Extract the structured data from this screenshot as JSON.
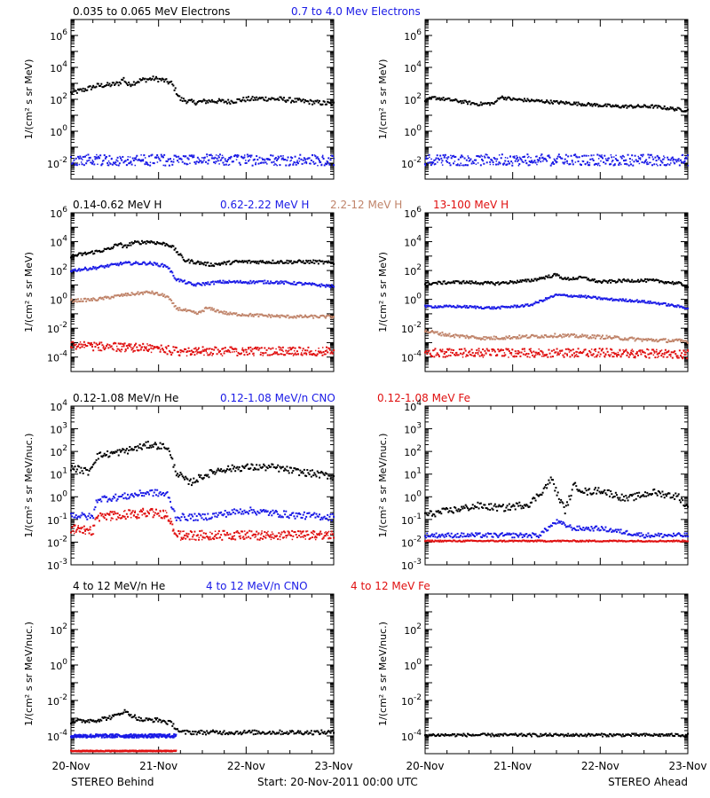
{
  "colors": {
    "black": "#000000",
    "blue": "#1a1ae6",
    "tan": "#c0846a",
    "red": "#e01010"
  },
  "footer": {
    "left": "STEREO Behind",
    "center": "Start: 20-Nov-2011 00:00 UTC",
    "right": "STEREO Ahead"
  },
  "x_axis": {
    "ticks": [
      "20-Nov",
      "21-Nov",
      "22-Nov",
      "23-Nov"
    ],
    "range": [
      "2011-11-20 00:00",
      "2011-11-23 00:00"
    ]
  },
  "chart_data": [
    {
      "type": "scatter",
      "row": "electrons",
      "legend": [
        {
          "label": "0.035 to 0.065 MeV Electrons",
          "color": "#000000"
        },
        {
          "label": "0.7 to 4.0 Mev Electrons",
          "color": "#1a1ae6"
        }
      ],
      "ylabel": "1/(cm² s sr MeV)",
      "y_scale": "log",
      "y_ticks": [
        {
          "exp": 6,
          "label": "10",
          "sup": "6"
        },
        {
          "exp": 4,
          "label": "10",
          "sup": "4"
        },
        {
          "exp": 2,
          "label": "10",
          "sup": "2"
        },
        {
          "exp": 0,
          "label": "10",
          "sup": "0"
        },
        {
          "exp": -2,
          "label": "10",
          "sup": "-2"
        }
      ],
      "ylim_exp": [
        -3,
        7
      ],
      "panels": {
        "behind": {
          "series": [
            {
              "label": "0.035 to 0.065 MeV Electrons",
              "color": "#000000",
              "x_days": [
                0,
                0.15,
                0.3,
                0.45,
                0.55,
                0.6,
                0.65,
                0.8,
                0.95,
                1.05,
                1.15,
                1.25,
                1.4,
                1.6,
                1.8,
                2.0,
                2.2,
                2.4,
                2.6,
                2.8,
                3.0
              ],
              "log_y": [
                2.4,
                2.6,
                2.85,
                2.9,
                3.0,
                3.3,
                2.9,
                3.2,
                3.3,
                3.2,
                3.0,
                2.0,
                1.8,
                1.9,
                1.85,
                2.0,
                2.05,
                2.0,
                1.9,
                1.8,
                1.7
              ],
              "noise": 0.15
            },
            {
              "label": "0.7 to 4.0 Mev Electrons",
              "color": "#1a1ae6",
              "x_days": [
                0,
                3.0
              ],
              "log_y": [
                -1.8,
                -1.8
              ],
              "noise": 0.35
            }
          ]
        },
        "ahead": {
          "series": [
            {
              "label": "0.035 to 0.065 MeV Electrons",
              "color": "#000000",
              "x_days": [
                0,
                0.1,
                0.3,
                0.6,
                0.8,
                0.85,
                1.0,
                1.4,
                1.8,
                2.2,
                2.6,
                3.0
              ],
              "log_y": [
                1.9,
                2.1,
                1.95,
                1.7,
                1.75,
                2.15,
                2.0,
                1.85,
                1.7,
                1.55,
                1.55,
                1.3
              ],
              "noise": 0.1
            },
            {
              "label": "0.7 to 4.0 Mev Electrons",
              "color": "#1a1ae6",
              "x_days": [
                0,
                3.0
              ],
              "log_y": [
                -1.8,
                -1.8
              ],
              "noise": 0.35
            }
          ]
        }
      }
    },
    {
      "type": "scatter",
      "row": "protons",
      "legend": [
        {
          "label": "0.14-0.62 MeV H",
          "color": "#000000"
        },
        {
          "label": "0.62-2.22 MeV H",
          "color": "#1a1ae6"
        },
        {
          "label": "2.2-12 MeV H",
          "color": "#c0846a"
        },
        {
          "label": "13-100 MeV H",
          "color": "#e01010"
        }
      ],
      "ylabel": "1/(cm² s sr MeV)",
      "y_scale": "log",
      "y_ticks": [
        {
          "exp": 6,
          "label": "10",
          "sup": "6"
        },
        {
          "exp": 4,
          "label": "10",
          "sup": "4"
        },
        {
          "exp": 2,
          "label": "10",
          "sup": "2"
        },
        {
          "exp": 0,
          "label": "10",
          "sup": "0"
        },
        {
          "exp": -2,
          "label": "10",
          "sup": "-2"
        },
        {
          "exp": -4,
          "label": "10",
          "sup": "-4"
        }
      ],
      "ylim_exp": [
        -5,
        6
      ],
      "panels": {
        "behind": {
          "series": [
            {
              "label": "0.14-0.62 MeV H",
              "color": "#000000",
              "x_days": [
                0,
                0.2,
                0.45,
                0.55,
                0.6,
                0.7,
                0.9,
                1.1,
                1.15,
                1.3,
                1.6,
                1.9,
                2.2,
                2.5,
                2.8,
                3.0
              ],
              "log_y": [
                3.0,
                3.2,
                3.5,
                3.9,
                3.6,
                3.9,
                4.0,
                3.8,
                3.7,
                2.7,
                2.4,
                2.6,
                2.6,
                2.6,
                2.6,
                2.5
              ],
              "noise": 0.12
            },
            {
              "label": "0.62-2.22 MeV H",
              "color": "#1a1ae6",
              "x_days": [
                0,
                0.3,
                0.6,
                0.9,
                1.1,
                1.2,
                1.4,
                1.7,
                2.0,
                2.3,
                2.6,
                3.0
              ],
              "log_y": [
                2.0,
                2.2,
                2.5,
                2.5,
                2.3,
                1.4,
                1.0,
                1.2,
                1.2,
                1.2,
                1.1,
                0.9
              ],
              "noise": 0.1
            },
            {
              "label": "2.2-12 MeV H",
              "color": "#c0846a",
              "x_days": [
                0,
                0.3,
                0.6,
                0.9,
                1.1,
                1.2,
                1.45,
                1.55,
                1.8,
                2.1,
                2.5,
                3.0
              ],
              "log_y": [
                -0.1,
                0.0,
                0.3,
                0.5,
                0.2,
                -0.6,
                -1.0,
                -0.6,
                -1.0,
                -1.1,
                -1.2,
                -1.2
              ],
              "noise": 0.1
            },
            {
              "label": "13-100 MeV H",
              "color": "#e01010",
              "x_days": [
                0,
                0.5,
                1.0,
                1.2,
                2.0,
                3.0
              ],
              "log_y": [
                -3.2,
                -3.3,
                -3.4,
                -3.6,
                -3.6,
                -3.6
              ],
              "noise": 0.3
            }
          ]
        },
        "ahead": {
          "series": [
            {
              "label": "0.14-0.62 MeV H",
              "color": "#000000",
              "x_days": [
                0,
                0.4,
                0.8,
                1.2,
                1.5,
                1.6,
                1.8,
                2.0,
                2.3,
                2.6,
                2.9,
                3.0
              ],
              "log_y": [
                1.1,
                1.2,
                1.1,
                1.3,
                1.7,
                1.4,
                1.5,
                1.2,
                1.3,
                1.3,
                1.1,
                0.9
              ],
              "noise": 0.1
            },
            {
              "label": "0.62-2.22 MeV H",
              "color": "#1a1ae6",
              "x_days": [
                0,
                0.4,
                0.8,
                1.2,
                1.5,
                1.8,
                2.1,
                2.4,
                2.7,
                3.0
              ],
              "log_y": [
                -0.5,
                -0.5,
                -0.6,
                -0.4,
                0.3,
                0.2,
                0.0,
                -0.1,
                -0.3,
                -0.6
              ],
              "noise": 0.08
            },
            {
              "label": "2.2-12 MeV H",
              "color": "#c0846a",
              "x_days": [
                0,
                0.3,
                0.7,
                1.1,
                1.5,
                2.0,
                2.5,
                3.0
              ],
              "log_y": [
                -2.2,
                -2.5,
                -2.7,
                -2.6,
                -2.5,
                -2.6,
                -2.8,
                -2.9
              ],
              "noise": 0.12
            },
            {
              "label": "13-100 MeV H",
              "color": "#e01010",
              "x_days": [
                0,
                1.0,
                2.0,
                3.0
              ],
              "log_y": [
                -3.7,
                -3.7,
                -3.7,
                -3.8
              ],
              "noise": 0.3
            }
          ]
        }
      }
    },
    {
      "type": "scatter",
      "row": "low-energy ions",
      "legend": [
        {
          "label": "0.12-1.08 MeV/n He",
          "color": "#000000"
        },
        {
          "label": "0.12-1.08 MeV/n CNO",
          "color": "#1a1ae6"
        },
        {
          "label": "0.12-1.08 MeV Fe",
          "color": "#e01010"
        }
      ],
      "ylabel": "1/(cm² s sr MeV/nuc.)",
      "y_scale": "log",
      "y_ticks": [
        {
          "exp": 4,
          "label": "10",
          "sup": "4"
        },
        {
          "exp": 3,
          "label": "10",
          "sup": "3"
        },
        {
          "exp": 2,
          "label": "10",
          "sup": "2"
        },
        {
          "exp": 1,
          "label": "10",
          "sup": "1"
        },
        {
          "exp": 0,
          "label": "10",
          "sup": "0"
        },
        {
          "exp": -1,
          "label": "10",
          "sup": "-1"
        },
        {
          "exp": -2,
          "label": "10",
          "sup": "-2"
        },
        {
          "exp": -3,
          "label": "10",
          "sup": "-3"
        }
      ],
      "ylim_exp": [
        -3,
        4
      ],
      "panels": {
        "behind": {
          "series": [
            {
              "label": "0.12-1.08 MeV/n He",
              "color": "#000000",
              "x_days": [
                0,
                0.2,
                0.3,
                0.6,
                0.9,
                1.1,
                1.2,
                1.35,
                1.5,
                1.7,
                2.0,
                2.3,
                2.6,
                3.0
              ],
              "log_y": [
                1.3,
                1.1,
                1.8,
                2.0,
                2.3,
                2.2,
                1.1,
                0.6,
                0.9,
                1.2,
                1.3,
                1.3,
                1.1,
                0.9
              ],
              "noise": 0.15
            },
            {
              "label": "0.12-1.08 MeV/n CNO",
              "color": "#1a1ae6",
              "x_days": [
                0,
                0.25,
                0.3,
                0.6,
                0.9,
                1.1,
                1.2,
                1.5,
                2.0,
                2.5,
                3.0
              ],
              "log_y": [
                -0.8,
                -0.9,
                -0.1,
                0.0,
                0.2,
                0.1,
                -0.9,
                -0.9,
                -0.6,
                -0.8,
                -0.9
              ],
              "noise": 0.15
            },
            {
              "label": "0.12-1.08 MeV Fe",
              "color": "#e01010",
              "x_days": [
                0,
                0.25,
                0.3,
                0.6,
                0.9,
                1.1,
                1.2,
                3.0
              ],
              "log_y": [
                -1.4,
                -1.5,
                -0.9,
                -0.8,
                -0.7,
                -0.8,
                -1.7,
                -1.7
              ],
              "noise": 0.2
            }
          ]
        },
        "ahead": {
          "series": [
            {
              "label": "0.12-1.08 MeV/n He",
              "color": "#000000",
              "x_days": [
                0,
                0.3,
                0.6,
                0.9,
                1.2,
                1.35,
                1.45,
                1.5,
                1.6,
                1.7,
                1.85,
                2.0,
                2.3,
                2.6,
                2.9,
                3.0
              ],
              "log_y": [
                -0.8,
                -0.6,
                -0.4,
                -0.5,
                -0.3,
                0.3,
                0.8,
                0.2,
                -0.6,
                0.5,
                0.2,
                0.3,
                -0.1,
                0.2,
                0.0,
                -0.5
              ],
              "noise": 0.15
            },
            {
              "label": "0.12-1.08 MeV/n CNO",
              "color": "#1a1ae6",
              "x_days": [
                0,
                1.3,
                1.5,
                1.7,
                2.0,
                2.5,
                3.0
              ],
              "log_y": [
                -1.7,
                -1.7,
                -1.1,
                -1.4,
                -1.4,
                -1.7,
                -1.7
              ],
              "noise": 0.1
            },
            {
              "label": "0.12-1.08 MeV Fe",
              "color": "#e01010",
              "x_days": [
                0,
                3.0
              ],
              "log_y": [
                -1.95,
                -1.95
              ],
              "noise": 0.03
            }
          ]
        }
      }
    },
    {
      "type": "scatter",
      "row": "high-energy ions",
      "legend": [
        {
          "label": "4 to 12 MeV/n He",
          "color": "#000000"
        },
        {
          "label": "4 to 12 MeV/n CNO",
          "color": "#1a1ae6"
        },
        {
          "label": "4 to 12 MeV Fe",
          "color": "#e01010"
        }
      ],
      "ylabel": "1/(cm² s sr MeV/nuc.)",
      "y_scale": "log",
      "y_ticks": [
        {
          "exp": 2,
          "label": "10",
          "sup": "2"
        },
        {
          "exp": 0,
          "label": "10",
          "sup": "0"
        },
        {
          "exp": -2,
          "label": "10",
          "sup": "-2"
        },
        {
          "exp": -4,
          "label": "10",
          "sup": "-4"
        }
      ],
      "ylim_exp": [
        -5,
        4
      ],
      "panels": {
        "behind": {
          "series": [
            {
              "label": "4 to 12 MeV/n He",
              "color": "#000000",
              "x_days": [
                0,
                0.3,
                0.5,
                0.6,
                0.8,
                1.0,
                1.15,
                1.25,
                3.0
              ],
              "log_y": [
                -3.2,
                -3.1,
                -2.9,
                -2.6,
                -3.1,
                -3.1,
                -3.3,
                -3.8,
                -3.8
              ],
              "noise": 0.12
            },
            {
              "label": "4 to 12 MeV/n CNO",
              "color": "#1a1ae6",
              "x_days": [
                0,
                1.2
              ],
              "log_y": [
                -4.0,
                -4.0
              ],
              "noise": 0.1
            },
            {
              "label": "4 to 12 MeV Fe",
              "color": "#e01010",
              "x_days": [
                0,
                1.2
              ],
              "log_y": [
                -4.85,
                -4.85
              ],
              "noise": 0.03
            }
          ]
        },
        "ahead": {
          "series": [
            {
              "label": "4 to 12 MeV/n He",
              "color": "#000000",
              "x_days": [
                0,
                3.0
              ],
              "log_y": [
                -3.95,
                -3.95
              ],
              "noise": 0.08
            }
          ]
        }
      }
    }
  ]
}
